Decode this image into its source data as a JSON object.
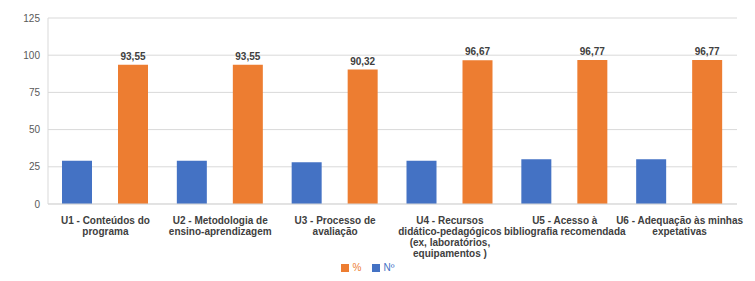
{
  "chart_data": {
    "type": "bar",
    "categories": [
      "U1 - Conteúdos do programa",
      "U2 - Metodologia de ensino-aprendizagem",
      "U3 - Processo de avaliação",
      "U4 - Recursos didático-pedagógicos (ex, laboratórios, equipamentos )",
      "U5 - Acesso à bibliografia recomendada",
      "U6 - Adequação às minhas expetativas"
    ],
    "series": [
      {
        "name": "Nº",
        "color": "#4472c4",
        "values": [
          29,
          29,
          28,
          29,
          30,
          30
        ]
      },
      {
        "name": "%",
        "color": "#ed7d31",
        "values": [
          93.55,
          93.55,
          90.32,
          96.67,
          96.77,
          96.77
        ],
        "value_labels": [
          "93,55",
          "93,55",
          "90,32",
          "96,67",
          "96,77",
          "96,77"
        ],
        "data_labels": true
      }
    ],
    "ylim": [
      0,
      125
    ],
    "yticks": [
      0,
      25,
      50,
      75,
      100,
      125
    ],
    "grid": true,
    "legend": "bottom"
  }
}
